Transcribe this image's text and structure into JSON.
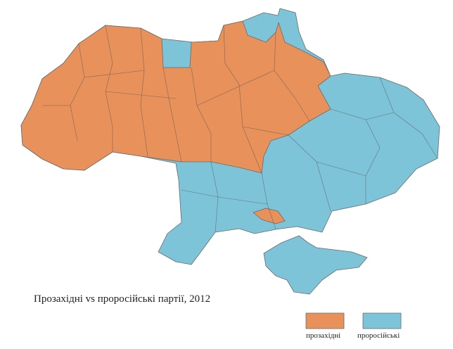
{
  "title": "Прозахідні vs проросійські партії, 2012",
  "legend": [
    {
      "label": "прозахідні",
      "color": "#e8915a"
    },
    {
      "label": "проросійські",
      "color": "#7dc4d8"
    }
  ]
}
